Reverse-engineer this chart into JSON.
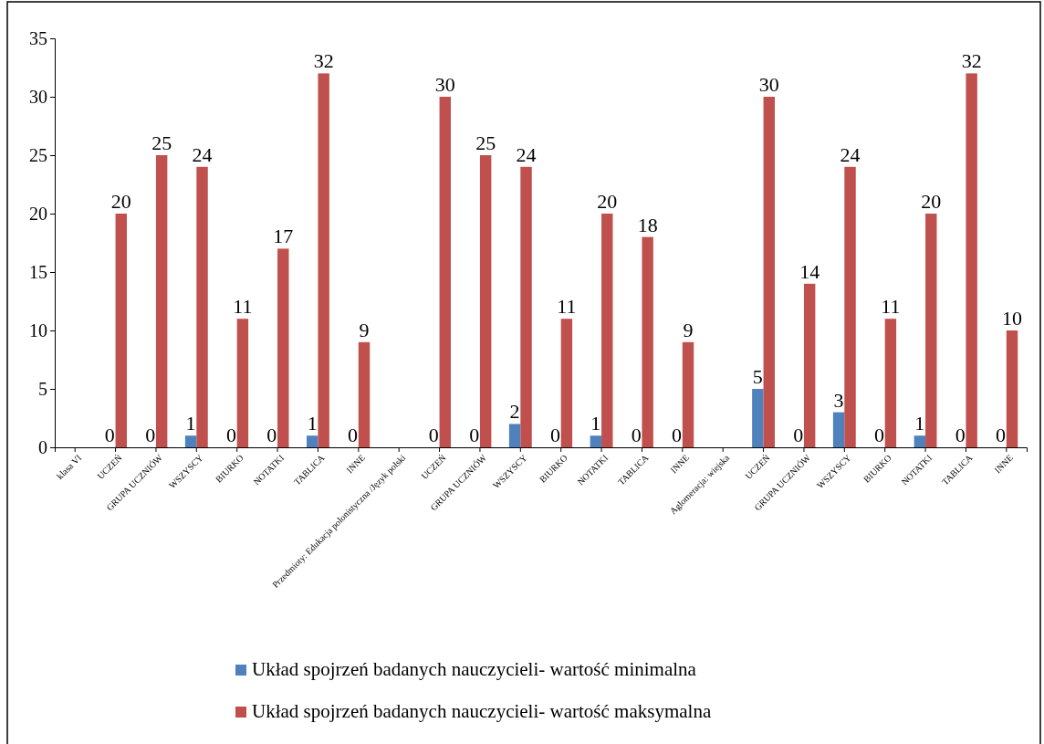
{
  "chart_data": {
    "type": "bar",
    "categories": [
      "klasa VI",
      "UCZEŃ",
      "GRUPA UCZNIÓW",
      "WSZYSCY",
      "BIURKO",
      "NOTATKI",
      "TABLICA",
      "INNE",
      "Przedmioty: Edukacja polonistyczna /Język polski",
      "UCZEŃ",
      "GRUPA UCZNIÓW",
      "WSZYSCY",
      "BIURKO",
      "NOTATKI",
      "TABLICA",
      "INNE",
      "Aglomeracja: wiejska",
      "UCZEŃ",
      "GRUPA UCZNIÓW",
      "WSZYSCY",
      "BIURKO",
      "NOTATKI",
      "TABLICA",
      "INNE"
    ],
    "series": [
      {
        "name": "Układ spojrzeń badanych nauczycieli- wartość minimalna",
        "color": "#4f81bd",
        "values": [
          null,
          0,
          0,
          1,
          0,
          0,
          1,
          0,
          null,
          0,
          0,
          2,
          0,
          1,
          0,
          0,
          null,
          5,
          0,
          3,
          0,
          1,
          0,
          0
        ]
      },
      {
        "name": "Układ spojrzeń badanych nauczycieli- wartość maksymalna",
        "color": "#c0504d",
        "values": [
          null,
          20,
          25,
          24,
          11,
          17,
          32,
          9,
          null,
          30,
          25,
          24,
          11,
          20,
          18,
          9,
          null,
          30,
          14,
          24,
          11,
          20,
          32,
          10
        ]
      }
    ],
    "ylim": [
      0,
      35
    ],
    "yticks": [
      0,
      5,
      10,
      15,
      20,
      25,
      30,
      35
    ],
    "data_labels": true,
    "legend": "bottom",
    "grid": false
  }
}
